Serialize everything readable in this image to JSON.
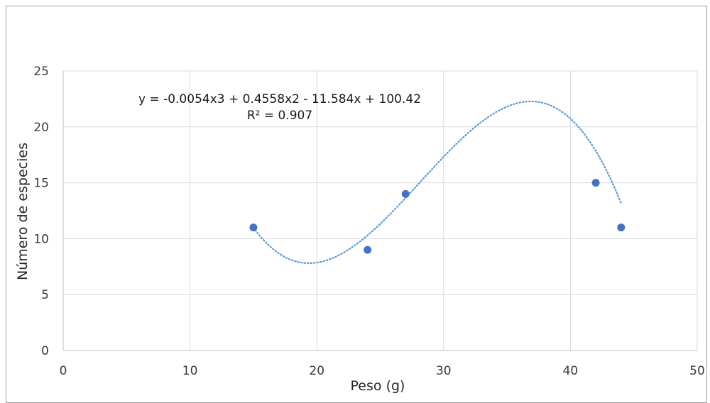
{
  "chart_data": {
    "type": "scatter",
    "xlabel": "Peso (g)",
    "ylabel": "Número de especies",
    "xlim": [
      0,
      50
    ],
    "ylim": [
      0,
      25
    ],
    "x_ticks": [
      0,
      10,
      20,
      30,
      40,
      50
    ],
    "y_ticks": [
      0,
      5,
      10,
      15,
      20,
      25
    ],
    "grid": true,
    "marker_color": "#4472c4",
    "trendline_color": "#5b9bd5",
    "points": [
      {
        "x": 15,
        "y": 11
      },
      {
        "x": 24,
        "y": 9
      },
      {
        "x": 27,
        "y": 14
      },
      {
        "x": 42,
        "y": 15
      },
      {
        "x": 44,
        "y": 11
      }
    ],
    "trendline": {
      "type": "polynomial",
      "degree": 3,
      "coefficients": [
        -0.0054,
        0.4558,
        -11.584,
        100.42
      ],
      "x_range": [
        15,
        44
      ],
      "equation_text": "y = -0.0054x3 + 0.4558x2 - 11.584x + 100.42",
      "r2_text": "R² = 0.907"
    }
  }
}
